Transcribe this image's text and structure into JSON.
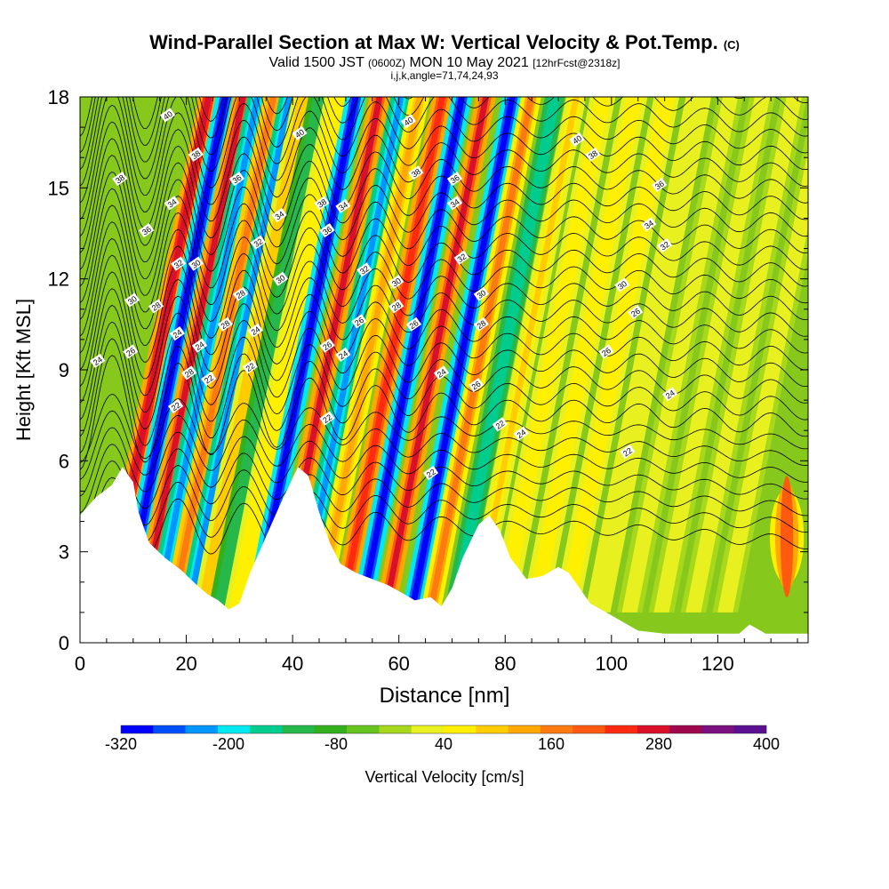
{
  "header": {
    "title_main": "Wind-Parallel Section at Max W: Vertical Velocity & Pot.Temp.",
    "title_mark": "(C)",
    "sub_valid": "Valid 1500 JST",
    "sub_utc": "(0600Z)",
    "sub_date": "MON 10 May 2021",
    "sub_fcst": "[12hrFcst@2318z]",
    "sub_indices": "i,j,k,angle=71,74,24,93"
  },
  "chart_data": {
    "type": "heatmap",
    "title": "Wind-Parallel Section at Max W: Vertical Velocity & Pot.Temp.",
    "xlabel": "Distance [nm]",
    "ylabel": "Height [Kft MSL]",
    "xlim": [
      0,
      137
    ],
    "ylim": [
      0,
      18
    ],
    "x_ticks": [
      0,
      20,
      40,
      60,
      80,
      100,
      120
    ],
    "y_ticks": [
      0,
      3,
      6,
      9,
      12,
      15,
      18
    ],
    "grid": false,
    "vertical_velocity_bands": [
      {
        "x": 14.8,
        "w": 350
      },
      {
        "x": 18,
        "w": -320
      },
      {
        "x": 21.3,
        "w": 330
      },
      {
        "x": 24,
        "w": -230
      },
      {
        "x": 27,
        "w": 220
      },
      {
        "x": 30,
        "w": -230
      },
      {
        "x": 33,
        "w": 120
      },
      {
        "x": 36,
        "w": -120
      },
      {
        "x": 39,
        "w": 90
      },
      {
        "x": 42.5,
        "w": -320
      },
      {
        "x": 47,
        "w": 320
      },
      {
        "x": 51,
        "w": -230
      },
      {
        "x": 54.5,
        "w": 170
      },
      {
        "x": 58.8,
        "w": 300
      },
      {
        "x": 62.5,
        "w": -320
      },
      {
        "x": 67,
        "w": 320
      },
      {
        "x": 72,
        "w": -320
      },
      {
        "x": 75.5,
        "w": 200
      },
      {
        "x": 80,
        "w": -160
      },
      {
        "x": 84,
        "w": 140
      },
      {
        "x": 89,
        "w": 100
      },
      {
        "x": 95,
        "w": 90
      },
      {
        "x": 101,
        "w": 80
      },
      {
        "x": 107,
        "w": 70
      },
      {
        "x": 113,
        "w": 65
      },
      {
        "x": 119,
        "w": 60
      },
      {
        "x": 125,
        "w": 55
      },
      {
        "x": 131,
        "w": 50
      }
    ],
    "surface_updraft": {
      "x": 133,
      "y_range": [
        1.5,
        5.5
      ],
      "w": 250
    },
    "terrain": [
      [
        0,
        4.2
      ],
      [
        3,
        4.8
      ],
      [
        6,
        5.2
      ],
      [
        8,
        5.8
      ],
      [
        10,
        5.3
      ],
      [
        11,
        4.3
      ],
      [
        13,
        3.3
      ],
      [
        16,
        2.8
      ],
      [
        19,
        2.4
      ],
      [
        22,
        1.9
      ],
      [
        24,
        1.6
      ],
      [
        26,
        1.4
      ],
      [
        28,
        1.1
      ],
      [
        30,
        1.3
      ],
      [
        32,
        2.3
      ],
      [
        35,
        3.5
      ],
      [
        38,
        4.7
      ],
      [
        41,
        5.8
      ],
      [
        43,
        5.5
      ],
      [
        45,
        4.3
      ],
      [
        47,
        3.3
      ],
      [
        49,
        2.6
      ],
      [
        52,
        2.3
      ],
      [
        55,
        2.1
      ],
      [
        58,
        1.9
      ],
      [
        61,
        1.6
      ],
      [
        63,
        1.4
      ],
      [
        66,
        1.5
      ],
      [
        68,
        1.2
      ],
      [
        70,
        1.8
      ],
      [
        72,
        2.8
      ],
      [
        75,
        3.9
      ],
      [
        77,
        4.2
      ],
      [
        79,
        3.7
      ],
      [
        81,
        2.8
      ],
      [
        84,
        2.1
      ],
      [
        87,
        2.2
      ],
      [
        90,
        2.5
      ],
      [
        92,
        2.3
      ],
      [
        94,
        1.8
      ],
      [
        96,
        1.3
      ],
      [
        98,
        1.1
      ],
      [
        100,
        0.9
      ],
      [
        102,
        0.7
      ],
      [
        105,
        0.4
      ],
      [
        110,
        0.3
      ],
      [
        115,
        0.3
      ],
      [
        120,
        0.3
      ],
      [
        124,
        0.3
      ],
      [
        126,
        0.6
      ],
      [
        129,
        0.3
      ],
      [
        134,
        0.3
      ],
      [
        137,
        0.3
      ]
    ],
    "theta_contour_labels": [
      {
        "text": "40",
        "x": 16.5,
        "y": 17.4
      },
      {
        "text": "38",
        "x": 21.8,
        "y": 16.1
      },
      {
        "text": "38",
        "x": 7.5,
        "y": 15.3
      },
      {
        "text": "36",
        "x": 29.5,
        "y": 15.3
      },
      {
        "text": "36",
        "x": 12.5,
        "y": 13.6
      },
      {
        "text": "34",
        "x": 17.3,
        "y": 14.5
      },
      {
        "text": "34",
        "x": 37.5,
        "y": 14.1
      },
      {
        "text": "32",
        "x": 33.5,
        "y": 13.2
      },
      {
        "text": "32",
        "x": 18.5,
        "y": 12.5
      },
      {
        "text": "30",
        "x": 21.8,
        "y": 12.5
      },
      {
        "text": "30",
        "x": 37.7,
        "y": 12.0
      },
      {
        "text": "30",
        "x": 9.8,
        "y": 11.3
      },
      {
        "text": "28",
        "x": 14.3,
        "y": 11.1
      },
      {
        "text": "28",
        "x": 30.2,
        "y": 11.5
      },
      {
        "text": "28",
        "x": 27.3,
        "y": 10.5
      },
      {
        "text": "26",
        "x": 9.5,
        "y": 9.6
      },
      {
        "text": "24",
        "x": 3.3,
        "y": 9.3
      },
      {
        "text": "24",
        "x": 18.3,
        "y": 10.2
      },
      {
        "text": "24",
        "x": 22.5,
        "y": 9.8
      },
      {
        "text": "24",
        "x": 33,
        "y": 10.3
      },
      {
        "text": "28",
        "x": 20.5,
        "y": 8.9
      },
      {
        "text": "22",
        "x": 24.2,
        "y": 8.7
      },
      {
        "text": "22",
        "x": 32,
        "y": 9.1
      },
      {
        "text": "22",
        "x": 18,
        "y": 7.8
      },
      {
        "text": "40",
        "x": 41.3,
        "y": 16.8
      },
      {
        "text": "38",
        "x": 45.5,
        "y": 14.5
      },
      {
        "text": "36",
        "x": 46.5,
        "y": 13.6
      },
      {
        "text": "34",
        "x": 49.5,
        "y": 14.4
      },
      {
        "text": "32",
        "x": 53.5,
        "y": 12.3
      },
      {
        "text": "30",
        "x": 59.5,
        "y": 11.9
      },
      {
        "text": "28",
        "x": 59.5,
        "y": 11.1
      },
      {
        "text": "26",
        "x": 52.5,
        "y": 10.6
      },
      {
        "text": "26",
        "x": 46.5,
        "y": 9.8
      },
      {
        "text": "24",
        "x": 49.5,
        "y": 9.5
      },
      {
        "text": "22",
        "x": 46.5,
        "y": 7.4
      },
      {
        "text": "40",
        "x": 61.8,
        "y": 17.2
      },
      {
        "text": "38",
        "x": 63.2,
        "y": 15.5
      },
      {
        "text": "36",
        "x": 70.5,
        "y": 15.3
      },
      {
        "text": "34",
        "x": 70.5,
        "y": 14.5
      },
      {
        "text": "32",
        "x": 71.8,
        "y": 12.7
      },
      {
        "text": "30",
        "x": 75.5,
        "y": 11.5
      },
      {
        "text": "28",
        "x": 75.5,
        "y": 10.5
      },
      {
        "text": "26",
        "x": 62.8,
        "y": 10.5
      },
      {
        "text": "24",
        "x": 68,
        "y": 8.9
      },
      {
        "text": "26",
        "x": 74.5,
        "y": 8.5
      },
      {
        "text": "22",
        "x": 79,
        "y": 7.2
      },
      {
        "text": "24",
        "x": 83,
        "y": 6.9
      },
      {
        "text": "22",
        "x": 66,
        "y": 5.6
      },
      {
        "text": "40",
        "x": 93.5,
        "y": 16.6
      },
      {
        "text": "38",
        "x": 96.5,
        "y": 16.1
      },
      {
        "text": "36",
        "x": 109,
        "y": 15.1
      },
      {
        "text": "34",
        "x": 107,
        "y": 13.8
      },
      {
        "text": "32",
        "x": 110,
        "y": 13.1
      },
      {
        "text": "30",
        "x": 102,
        "y": 11.8
      },
      {
        "text": "26",
        "x": 104.5,
        "y": 10.9
      },
      {
        "text": "26",
        "x": 99,
        "y": 9.6
      },
      {
        "text": "24",
        "x": 111,
        "y": 8.2
      },
      {
        "text": "22",
        "x": 103,
        "y": 6.3
      }
    ],
    "colorbar": {
      "label": "Vertical Velocity [cm/s]",
      "min": -320,
      "max": 400,
      "step": 40,
      "tick_labels": [
        "-320",
        "-200",
        "-80",
        "40",
        "160",
        "280",
        "400"
      ],
      "colors": [
        "#0000ff",
        "#0050ff",
        "#0096ff",
        "#00e8f0",
        "#00cc8e",
        "#26b84a",
        "#33b01c",
        "#66c21c",
        "#a8d81c",
        "#e8f020",
        "#fff000",
        "#ffcc00",
        "#ffa800",
        "#ff7a10",
        "#ff5a10",
        "#ff2a10",
        "#d8102a",
        "#a0084e",
        "#7a1080",
        "#5a1090"
      ]
    }
  }
}
